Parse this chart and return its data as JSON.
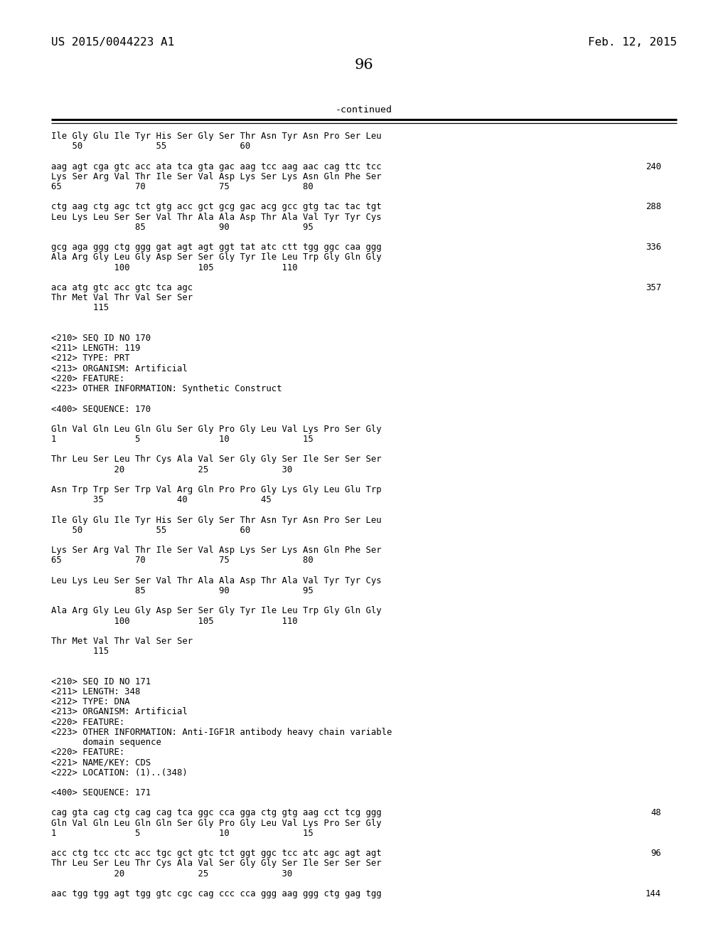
{
  "header_left": "US 2015/0044223 A1",
  "header_right": "Feb. 12, 2015",
  "page_number": "96",
  "continued_label": "-continued",
  "bg_color": "#ffffff",
  "text_color": "#000000",
  "lines": [
    {
      "y": 0,
      "content": "Ile Gly Glu Ile Tyr His Ser Gly Ser Thr Asn Tyr Asn Pro Ser Leu"
    },
    {
      "y": 1,
      "content": "    50              55              60"
    },
    {
      "y": 2,
      "content": ""
    },
    {
      "y": 3,
      "content": "aag agt cga gtc acc ata tca gta gac aag tcc aag aac cag ttc tcc",
      "right": "240"
    },
    {
      "y": 4,
      "content": "Lys Ser Arg Val Thr Ile Ser Val Asp Lys Ser Lys Asn Gln Phe Ser"
    },
    {
      "y": 5,
      "content": "65              70              75              80"
    },
    {
      "y": 6,
      "content": ""
    },
    {
      "y": 7,
      "content": "ctg aag ctg agc tct gtg acc gct gcg gac acg gcc gtg tac tac tgt",
      "right": "288"
    },
    {
      "y": 8,
      "content": "Leu Lys Leu Ser Ser Val Thr Ala Ala Asp Thr Ala Val Tyr Tyr Cys"
    },
    {
      "y": 9,
      "content": "                85              90              95"
    },
    {
      "y": 10,
      "content": ""
    },
    {
      "y": 11,
      "content": "gcg aga ggg ctg ggg gat agt agt ggt tat atc ctt tgg ggc caa ggg",
      "right": "336"
    },
    {
      "y": 12,
      "content": "Ala Arg Gly Leu Gly Asp Ser Ser Gly Tyr Ile Leu Trp Gly Gln Gly"
    },
    {
      "y": 13,
      "content": "            100             105             110"
    },
    {
      "y": 14,
      "content": ""
    },
    {
      "y": 15,
      "content": "aca atg gtc acc gtc tca agc",
      "right": "357"
    },
    {
      "y": 16,
      "content": "Thr Met Val Thr Val Ser Ser"
    },
    {
      "y": 17,
      "content": "        115"
    },
    {
      "y": 18,
      "content": ""
    },
    {
      "y": 19,
      "content": ""
    },
    {
      "y": 20,
      "content": "<210> SEQ ID NO 170"
    },
    {
      "y": 21,
      "content": "<211> LENGTH: 119"
    },
    {
      "y": 22,
      "content": "<212> TYPE: PRT"
    },
    {
      "y": 23,
      "content": "<213> ORGANISM: Artificial"
    },
    {
      "y": 24,
      "content": "<220> FEATURE:"
    },
    {
      "y": 25,
      "content": "<223> OTHER INFORMATION: Synthetic Construct"
    },
    {
      "y": 26,
      "content": ""
    },
    {
      "y": 27,
      "content": "<400> SEQUENCE: 170"
    },
    {
      "y": 28,
      "content": ""
    },
    {
      "y": 29,
      "content": "Gln Val Gln Leu Gln Glu Ser Gly Pro Gly Leu Val Lys Pro Ser Gly"
    },
    {
      "y": 30,
      "content": "1               5               10              15"
    },
    {
      "y": 31,
      "content": ""
    },
    {
      "y": 32,
      "content": "Thr Leu Ser Leu Thr Cys Ala Val Ser Gly Gly Ser Ile Ser Ser Ser"
    },
    {
      "y": 33,
      "content": "            20              25              30"
    },
    {
      "y": 34,
      "content": ""
    },
    {
      "y": 35,
      "content": "Asn Trp Trp Ser Trp Val Arg Gln Pro Pro Gly Lys Gly Leu Glu Trp"
    },
    {
      "y": 36,
      "content": "        35              40              45"
    },
    {
      "y": 37,
      "content": ""
    },
    {
      "y": 38,
      "content": "Ile Gly Glu Ile Tyr His Ser Gly Ser Thr Asn Tyr Asn Pro Ser Leu"
    },
    {
      "y": 39,
      "content": "    50              55              60"
    },
    {
      "y": 40,
      "content": ""
    },
    {
      "y": 41,
      "content": "Lys Ser Arg Val Thr Ile Ser Val Asp Lys Ser Lys Asn Gln Phe Ser"
    },
    {
      "y": 42,
      "content": "65              70              75              80"
    },
    {
      "y": 43,
      "content": ""
    },
    {
      "y": 44,
      "content": "Leu Lys Leu Ser Ser Val Thr Ala Ala Asp Thr Ala Val Tyr Tyr Cys"
    },
    {
      "y": 45,
      "content": "                85              90              95"
    },
    {
      "y": 46,
      "content": ""
    },
    {
      "y": 47,
      "content": "Ala Arg Gly Leu Gly Asp Ser Ser Gly Tyr Ile Leu Trp Gly Gln Gly"
    },
    {
      "y": 48,
      "content": "            100             105             110"
    },
    {
      "y": 49,
      "content": ""
    },
    {
      "y": 50,
      "content": "Thr Met Val Thr Val Ser Ser"
    },
    {
      "y": 51,
      "content": "        115"
    },
    {
      "y": 52,
      "content": ""
    },
    {
      "y": 53,
      "content": ""
    },
    {
      "y": 54,
      "content": "<210> SEQ ID NO 171"
    },
    {
      "y": 55,
      "content": "<211> LENGTH: 348"
    },
    {
      "y": 56,
      "content": "<212> TYPE: DNA"
    },
    {
      "y": 57,
      "content": "<213> ORGANISM: Artificial"
    },
    {
      "y": 58,
      "content": "<220> FEATURE:"
    },
    {
      "y": 59,
      "content": "<223> OTHER INFORMATION: Anti-IGF1R antibody heavy chain variable"
    },
    {
      "y": 60,
      "content": "      domain sequence"
    },
    {
      "y": 61,
      "content": "<220> FEATURE:"
    },
    {
      "y": 62,
      "content": "<221> NAME/KEY: CDS"
    },
    {
      "y": 63,
      "content": "<222> LOCATION: (1)..(348)"
    },
    {
      "y": 64,
      "content": ""
    },
    {
      "y": 65,
      "content": "<400> SEQUENCE: 171"
    },
    {
      "y": 66,
      "content": ""
    },
    {
      "y": 67,
      "content": "cag gta cag ctg cag cag tca ggc cca gga ctg gtg aag cct tcg ggg",
      "right": "48"
    },
    {
      "y": 68,
      "content": "Gln Val Gln Leu Gln Gln Ser Gly Pro Gly Leu Val Lys Pro Ser Gly"
    },
    {
      "y": 69,
      "content": "1               5               10              15"
    },
    {
      "y": 70,
      "content": ""
    },
    {
      "y": 71,
      "content": "acc ctg tcc ctc acc tgc gct gtc tct ggt ggc tcc atc agc agt agt",
      "right": "96"
    },
    {
      "y": 72,
      "content": "Thr Leu Ser Leu Thr Cys Ala Val Ser Gly Gly Ser Ile Ser Ser Ser"
    },
    {
      "y": 73,
      "content": "            20              25              30"
    },
    {
      "y": 74,
      "content": ""
    },
    {
      "y": 75,
      "content": "aac tgg tgg agt tgg gtc cgc cag ccc cca ggg aag ggg ctg gag tgg",
      "right": "144"
    }
  ]
}
